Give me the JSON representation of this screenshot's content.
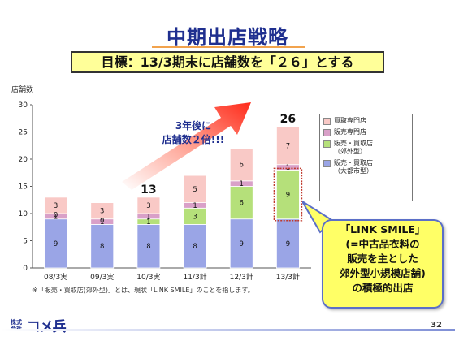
{
  "slide": {
    "title": "中期出店戦略",
    "goal": "目標：13/3期末に店舗数を「２６」とする",
    "page_number": "32",
    "note": "※「販売・買取店(郊外型)」とは、現状「LINK SMILE」のことを指します。",
    "logo_small": "株式会社",
    "logo_big": "コメ兵",
    "arrow_text": [
      "3年後に",
      "店舗数２倍!!!"
    ],
    "callout_lines": [
      "「LINK SMILE」",
      "(=中古品衣料の",
      "販売を主とした",
      "郊外型小規模店舗)",
      "の積極的出店"
    ]
  },
  "chart_data": {
    "type": "bar",
    "stacked": true,
    "ylabel": "店舗数",
    "ylim": [
      0,
      30
    ],
    "yticks": [
      0,
      5,
      10,
      15,
      20,
      25,
      30
    ],
    "categories": [
      "08/3実",
      "09/3実",
      "10/3実",
      "11/3計",
      "12/3計",
      "13/3計"
    ],
    "series": [
      {
        "name": "販売・買取店\n（大都市型）",
        "values": [
          9,
          8,
          8,
          8,
          9,
          9
        ],
        "color": "#9aa5e6"
      },
      {
        "name": "販売・買取店\n（郊外型）",
        "values": [
          0,
          0,
          1,
          3,
          6,
          9
        ],
        "color": "#b5e07a"
      },
      {
        "name": "販売専門店",
        "values": [
          1,
          1,
          1,
          1,
          1,
          1
        ],
        "color": "#d9a0c8"
      },
      {
        "name": "買取専門店",
        "values": [
          3,
          3,
          3,
          5,
          6,
          7
        ],
        "color": "#f9c9c6"
      }
    ],
    "segment_labels": [
      [
        "9",
        "0",
        "1",
        "3"
      ],
      [
        "8",
        "0",
        "1",
        "3"
      ],
      [
        "8",
        "1",
        "1",
        "3"
      ],
      [
        "8",
        "3",
        "1",
        "5"
      ],
      [
        "9",
        "6",
        "1",
        "6"
      ],
      [
        "9",
        "9",
        "1",
        "7"
      ]
    ],
    "total_labels": [
      "",
      "",
      "13",
      "",
      "",
      "26"
    ],
    "legend_position": "right"
  }
}
